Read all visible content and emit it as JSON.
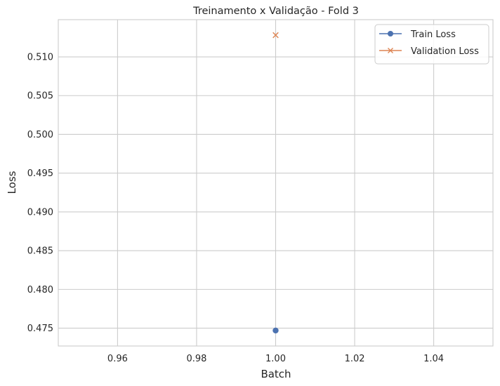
{
  "chart_data": {
    "type": "line",
    "title": "Treinamento x Validação - Fold 3",
    "xlabel": "Batch",
    "ylabel": "Loss",
    "xlim": [
      0.945,
      1.055
    ],
    "ylim": [
      0.4727,
      0.5148
    ],
    "xticks": [
      0.96,
      0.98,
      1.0,
      1.02,
      1.04
    ],
    "xtick_labels": [
      "0.96",
      "0.98",
      "1.00",
      "1.02",
      "1.04"
    ],
    "yticks": [
      0.475,
      0.48,
      0.485,
      0.49,
      0.495,
      0.5,
      0.505,
      0.51
    ],
    "ytick_labels": [
      "0.475",
      "0.480",
      "0.485",
      "0.490",
      "0.495",
      "0.500",
      "0.505",
      "0.510"
    ],
    "grid": true,
    "legend_position": "top-right",
    "series": [
      {
        "name": "Train Loss",
        "marker": "circle",
        "color": "#4c72b0",
        "x": [
          1.0
        ],
        "y": [
          0.4747
        ]
      },
      {
        "name": "Validation Loss",
        "marker": "x",
        "color": "#dd8452",
        "x": [
          1.0
        ],
        "y": [
          0.5128
        ]
      }
    ]
  }
}
